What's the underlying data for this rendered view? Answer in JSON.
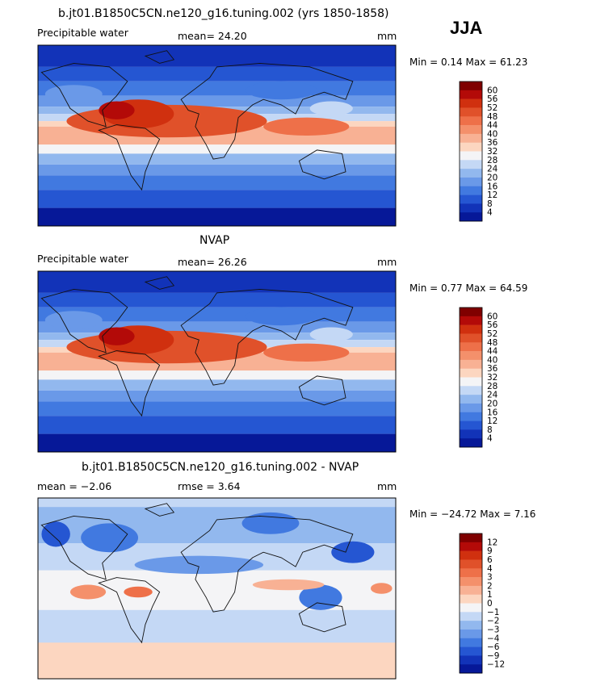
{
  "season": "JJA",
  "panels": [
    {
      "title": "b.jt01.B1850C5CN.ne120_g16.tuning.002 (yrs 1850-1858)",
      "left_label": "Precipitable water",
      "center_label": "mean=  24.20",
      "units": "mm",
      "minmax": "Min =    0.14  Max =   61.23"
    },
    {
      "title": "NVAP",
      "left_label": "Precipitable water",
      "center_label": "mean=  26.26",
      "units": "mm",
      "minmax": "Min =    0.77  Max =   64.59"
    },
    {
      "title": "b.jt01.B1850C5CN.ne120_g16.tuning.002 - NVAP",
      "left_label": "mean =  −2.06",
      "center_label": "rmse =    3.64",
      "units": "mm",
      "minmax": "Min = −24.72  Max =    7.16"
    }
  ],
  "chart_data": [
    {
      "type": "heatmap",
      "title": "b.jt01.B1850C5CN.ne120_g16.tuning.002 (yrs 1850-1858)",
      "variable": "Precipitable water",
      "units": "mm",
      "mean": 24.2,
      "min": 0.14,
      "max": 61.23,
      "colorbar_levels": [
        "60",
        "56",
        "52",
        "48",
        "44",
        "40",
        "36",
        "32",
        "28",
        "24",
        "20",
        "16",
        "12",
        "8",
        "4"
      ],
      "colors": [
        "#7f0000",
        "#b30a08",
        "#d0300f",
        "#e0512a",
        "#ee7049",
        "#f4906b",
        "#f8b194",
        "#fcd6c0",
        "#f4f4f6",
        "#c4d8f5",
        "#92b8ee",
        "#6a99e8",
        "#4179e0",
        "#2556d2",
        "#1233b8",
        "#061898"
      ]
    },
    {
      "type": "heatmap",
      "title": "NVAP",
      "variable": "Precipitable water",
      "units": "mm",
      "mean": 26.26,
      "min": 0.77,
      "max": 64.59,
      "colorbar_levels": [
        "60",
        "56",
        "52",
        "48",
        "44",
        "40",
        "36",
        "32",
        "28",
        "24",
        "20",
        "16",
        "12",
        "8",
        "4"
      ],
      "colors": [
        "#7f0000",
        "#b30a08",
        "#d0300f",
        "#e0512a",
        "#ee7049",
        "#f4906b",
        "#f8b194",
        "#fcd6c0",
        "#f4f4f6",
        "#c4d8f5",
        "#92b8ee",
        "#6a99e8",
        "#4179e0",
        "#2556d2",
        "#1233b8",
        "#061898"
      ]
    },
    {
      "type": "heatmap",
      "title": "b.jt01.B1850C5CN.ne120_g16.tuning.002 - NVAP",
      "units": "mm",
      "mean": -2.06,
      "rmse": 3.64,
      "min": -24.72,
      "max": 7.16,
      "colorbar_levels": [
        "12",
        "9",
        "6",
        "4",
        "3",
        "2",
        "1",
        "0",
        "−1",
        "−2",
        "−3",
        "−4",
        "−6",
        "−9",
        "−12"
      ],
      "colors": [
        "#7f0000",
        "#b30a08",
        "#d0300f",
        "#e0512a",
        "#ee7049",
        "#f4906b",
        "#f8b194",
        "#fcd6c0",
        "#f4f4f6",
        "#c4d8f5",
        "#92b8ee",
        "#6a99e8",
        "#4179e0",
        "#2556d2",
        "#1233b8",
        "#061898"
      ]
    }
  ]
}
